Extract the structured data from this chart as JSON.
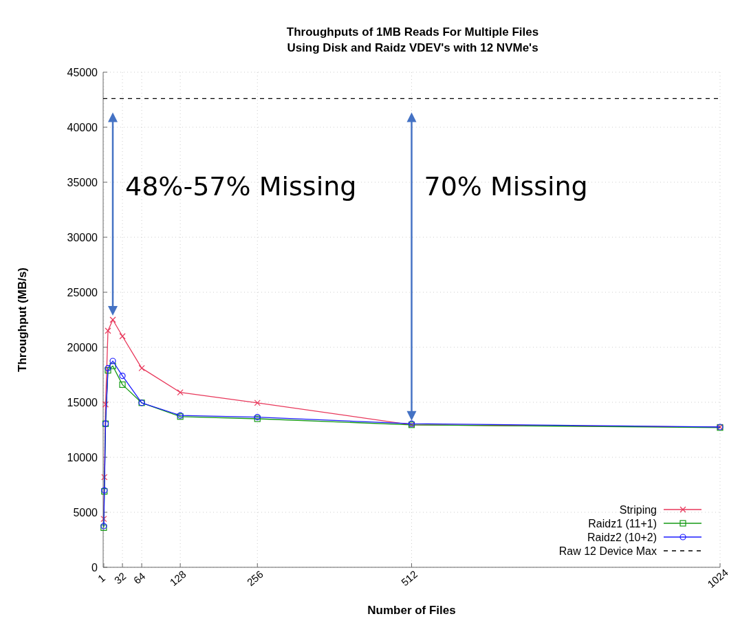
{
  "chart_data": {
    "type": "line",
    "title": "Throughputs of 1MB Reads For Multiple Files",
    "subtitle": "Using Disk and Raidz VDEV's with 12 NVMe's",
    "xlabel": "Number of Files",
    "ylabel": "Throughput (MB/s)",
    "x": [
      1,
      2,
      4,
      8,
      16,
      32,
      64,
      128,
      256,
      512,
      1024
    ],
    "series": [
      {
        "name": "Striping",
        "color": "#e8375a",
        "marker": "cross",
        "values": [
          4400,
          8200,
          14800,
          21500,
          22500,
          21000,
          18100,
          15900,
          14950,
          12950,
          12750
        ]
      },
      {
        "name": "Raidz1 (11+1)",
        "color": "#139a13",
        "marker": "square",
        "values": [
          3600,
          6900,
          13050,
          17900,
          18300,
          16600,
          14950,
          13700,
          13500,
          12950,
          12700
        ]
      },
      {
        "name": "Raidz2 (10+2)",
        "color": "#1a1aff",
        "marker": "circle",
        "values": [
          3750,
          7000,
          13050,
          18100,
          18750,
          17400,
          14950,
          13800,
          13650,
          13050,
          12750
        ]
      },
      {
        "name": "Raw 12 Device Max",
        "color": "#000000",
        "marker": "none",
        "line_style": "dashed",
        "x": [
          0,
          1024
        ],
        "values": [
          42600,
          42600
        ]
      }
    ],
    "xlim": [
      0,
      1024
    ],
    "xticks": [
      1,
      32,
      64,
      128,
      256,
      512,
      1024
    ],
    "ylim": [
      0,
      45000
    ],
    "yticks": [
      0,
      5000,
      10000,
      15000,
      20000,
      25000,
      30000,
      35000,
      40000,
      45000
    ],
    "grid": true,
    "legend": "bottom right",
    "annotations": [
      "48%-57% Missing",
      "70% Missing"
    ]
  }
}
